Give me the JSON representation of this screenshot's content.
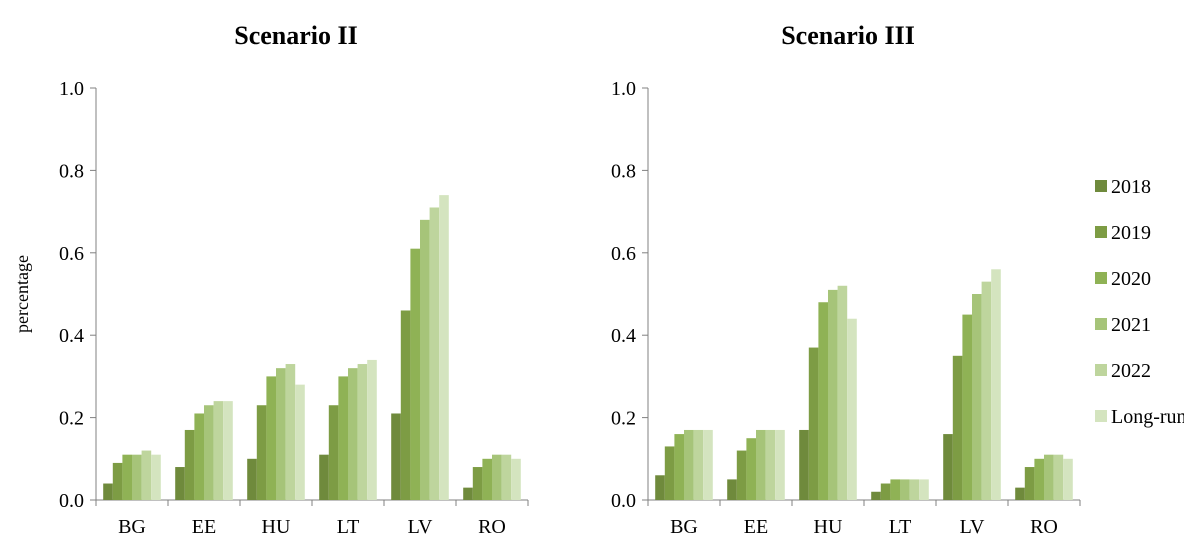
{
  "chart_data": [
    {
      "type": "bar",
      "title": "Scenario II",
      "xlabel": "",
      "ylabel": "percentage",
      "ylim": [
        0,
        1
      ],
      "yticks": [
        "0.0",
        "0.2",
        "0.4",
        "0.6",
        "0.8",
        "1.0"
      ],
      "categories": [
        "BG",
        "EE",
        "HU",
        "LT",
        "LV",
        "RO"
      ],
      "series": [
        {
          "name": "2018",
          "values": [
            0.04,
            0.08,
            0.1,
            0.11,
            0.21,
            0.03
          ]
        },
        {
          "name": "2019",
          "values": [
            0.09,
            0.17,
            0.23,
            0.23,
            0.46,
            0.08
          ]
        },
        {
          "name": "2020",
          "values": [
            0.11,
            0.21,
            0.3,
            0.3,
            0.61,
            0.1
          ]
        },
        {
          "name": "2021",
          "values": [
            0.11,
            0.23,
            0.32,
            0.32,
            0.68,
            0.11
          ]
        },
        {
          "name": "2022",
          "values": [
            0.12,
            0.24,
            0.33,
            0.33,
            0.71,
            0.11
          ]
        },
        {
          "name": "Long-run",
          "values": [
            0.11,
            0.24,
            0.28,
            0.34,
            0.74,
            0.1
          ]
        }
      ],
      "grid": false,
      "legend": "none"
    },
    {
      "type": "bar",
      "title": "Scenario III",
      "xlabel": "",
      "ylabel": "",
      "ylim": [
        0,
        1
      ],
      "yticks": [
        "0.0",
        "0.2",
        "0.4",
        "0.6",
        "0.8",
        "1.0"
      ],
      "categories": [
        "BG",
        "EE",
        "HU",
        "LT",
        "LV",
        "RO"
      ],
      "series": [
        {
          "name": "2018",
          "values": [
            0.06,
            0.05,
            0.17,
            0.02,
            0.16,
            0.03
          ]
        },
        {
          "name": "2019",
          "values": [
            0.13,
            0.12,
            0.37,
            0.04,
            0.35,
            0.08
          ]
        },
        {
          "name": "2020",
          "values": [
            0.16,
            0.15,
            0.48,
            0.05,
            0.45,
            0.1
          ]
        },
        {
          "name": "2021",
          "values": [
            0.17,
            0.17,
            0.51,
            0.05,
            0.5,
            0.11
          ]
        },
        {
          "name": "2022",
          "values": [
            0.17,
            0.17,
            0.52,
            0.05,
            0.53,
            0.11
          ]
        },
        {
          "name": "Long-run",
          "values": [
            0.17,
            0.17,
            0.44,
            0.05,
            0.56,
            0.1
          ]
        }
      ],
      "grid": false,
      "legend": "right"
    }
  ],
  "colors": {
    "series": [
      "#6f8a3c",
      "#7d9c44",
      "#8fb255",
      "#a6c479",
      "#bed59d",
      "#d4e4bf"
    ],
    "axis": "#808080",
    "text": "#000000"
  }
}
